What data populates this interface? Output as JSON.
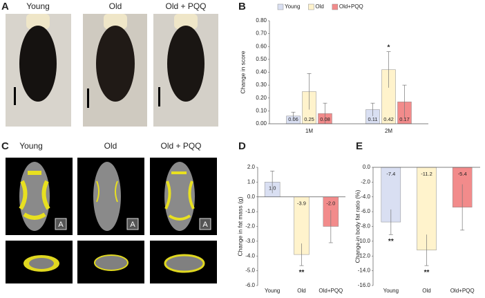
{
  "panels": {
    "labels": [
      "A",
      "B",
      "C",
      "D",
      "E"
    ],
    "captions_a": [
      "Young",
      "Old",
      "Old + PQQ"
    ],
    "captions_c": [
      "Young",
      "Old",
      "Old + PQQ"
    ],
    "ct_marker": "A"
  },
  "chart_data": [
    {
      "type": "bar",
      "y_label": "Change in score",
      "categories": [
        "1M",
        "2M"
      ],
      "series": [
        {
          "name": "Young",
          "color": "#d9dff2",
          "values": [
            0.06,
            0.11
          ],
          "errors": [
            0.03,
            0.05
          ]
        },
        {
          "name": "Old",
          "color": "#fff3cc",
          "values": [
            0.25,
            0.42
          ],
          "errors": [
            0.14,
            0.14
          ]
        },
        {
          "name": "Old+PQQ",
          "color": "#f28b8b",
          "values": [
            0.08,
            0.17
          ],
          "errors": [
            0.08,
            0.13
          ]
        }
      ],
      "ylim": [
        0,
        0.8
      ],
      "yticks": [
        {
          "value": 0,
          "label": "0.00"
        },
        {
          "value": 0.1,
          "label": "0.10"
        },
        {
          "value": 0.2,
          "label": "0.20"
        },
        {
          "value": 0.3,
          "label": "0.30"
        },
        {
          "value": 0.4,
          "label": "0.40"
        },
        {
          "value": 0.5,
          "label": "0.50"
        },
        {
          "value": 0.6,
          "label": "0.60"
        },
        {
          "value": 0.7,
          "label": "0.70"
        },
        {
          "value": 0.8,
          "label": "0.80"
        }
      ],
      "legend": "top",
      "annotations": [
        {
          "text": "*",
          "category": 1,
          "series": 1
        }
      ]
    },
    {
      "type": "bar",
      "y_label": "Change in fat mass (g)",
      "categories": [
        "Young",
        "Old",
        "Old+PQQ"
      ],
      "series": [
        {
          "colors": [
            "#d9dff2",
            "#fff3cc",
            "#f28b8b"
          ],
          "values": [
            1.0,
            -3.9,
            -2.0
          ],
          "value_labels": [
            "1.0",
            "-3.9",
            "-2.0"
          ],
          "errors": [
            0.75,
            0.75,
            1.1
          ]
        }
      ],
      "ylim": [
        -6,
        2
      ],
      "yticks": [
        {
          "value": 2,
          "label": "2.0"
        },
        {
          "value": 1,
          "label": "1.0"
        },
        {
          "value": 0,
          "label": "0.0"
        },
        {
          "value": -1,
          "label": "-1.0"
        },
        {
          "value": -2,
          "label": "-2.0"
        },
        {
          "value": -3,
          "label": "-3.0"
        },
        {
          "value": -4,
          "label": "-4.0"
        },
        {
          "value": -5,
          "label": "-5.0"
        },
        {
          "value": -6,
          "label": "-6.0"
        }
      ],
      "annotations": [
        {
          "text": "**",
          "category": 1,
          "series": 0
        }
      ]
    },
    {
      "type": "bar",
      "y_label": "Change in body fat ratio (%)",
      "categories": [
        "Young",
        "Old",
        "Old+PQQ"
      ],
      "series": [
        {
          "colors": [
            "#d9dff2",
            "#fff3cc",
            "#f28b8b"
          ],
          "values": [
            -7.4,
            -11.2,
            -5.4
          ],
          "errors": [
            1.7,
            2.1,
            3.1
          ]
        }
      ],
      "ylim": [
        -16,
        0
      ],
      "yticks": [
        {
          "value": 0,
          "label": "0.0"
        },
        {
          "value": -2,
          "label": "-2.0"
        },
        {
          "value": -4,
          "label": "-4.0"
        },
        {
          "value": -6,
          "label": "-6.0"
        },
        {
          "value": -8,
          "label": "-8.0"
        },
        {
          "value": -10,
          "label": "-10.0"
        },
        {
          "value": -12,
          "label": "-12.0"
        },
        {
          "value": -14,
          "label": "-14.0"
        },
        {
          "value": -16,
          "label": "-16.0"
        }
      ],
      "annotations": [
        {
          "text": "**",
          "category": 0,
          "series": 0
        },
        {
          "text": "**",
          "category": 1,
          "series": 0
        }
      ]
    }
  ]
}
